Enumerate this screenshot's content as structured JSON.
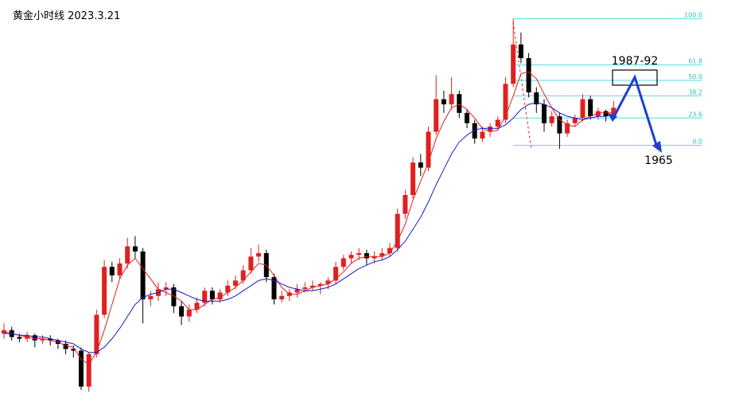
{
  "chart_data": {
    "type": "candlestick",
    "title": "黄金小时线  2023.3.21",
    "ylim": [
      1786,
      2021
    ],
    "up_color": "#e02020",
    "down_color": "#000000",
    "ohlc": [
      [
        1826,
        1832,
        1823,
        1828
      ],
      [
        1828,
        1830,
        1822,
        1824
      ],
      [
        1824,
        1826,
        1821,
        1823
      ],
      [
        1823,
        1827,
        1821,
        1825
      ],
      [
        1825,
        1826,
        1818,
        1822
      ],
      [
        1822,
        1825,
        1820,
        1823
      ],
      [
        1823,
        1825,
        1819,
        1822
      ],
      [
        1822,
        1823,
        1817,
        1820
      ],
      [
        1820,
        1822,
        1814,
        1817
      ],
      [
        1817,
        1819,
        1812,
        1816
      ],
      [
        1816,
        1818,
        1793,
        1795
      ],
      [
        1795,
        1815,
        1792,
        1814
      ],
      [
        1814,
        1840,
        1812,
        1837
      ],
      [
        1837,
        1869,
        1835,
        1865
      ],
      [
        1865,
        1868,
        1856,
        1860
      ],
      [
        1860,
        1870,
        1858,
        1867
      ],
      [
        1867,
        1882,
        1864,
        1877
      ],
      [
        1877,
        1883,
        1870,
        1874
      ],
      [
        1874,
        1876,
        1832,
        1846
      ],
      [
        1846,
        1851,
        1842,
        1848
      ],
      [
        1848,
        1856,
        1845,
        1852
      ],
      [
        1852,
        1856,
        1848,
        1853
      ],
      [
        1853,
        1855,
        1838,
        1842
      ],
      [
        1842,
        1845,
        1831,
        1836
      ],
      [
        1836,
        1843,
        1833,
        1840
      ],
      [
        1840,
        1847,
        1838,
        1844
      ],
      [
        1844,
        1853,
        1842,
        1851
      ],
      [
        1851,
        1853,
        1843,
        1846
      ],
      [
        1846,
        1852,
        1844,
        1850
      ],
      [
        1850,
        1857,
        1848,
        1854
      ],
      [
        1854,
        1860,
        1852,
        1857
      ],
      [
        1857,
        1866,
        1855,
        1863
      ],
      [
        1863,
        1876,
        1861,
        1871
      ],
      [
        1871,
        1878,
        1868,
        1873
      ],
      [
        1873,
        1875,
        1856,
        1859
      ],
      [
        1859,
        1861,
        1843,
        1846
      ],
      [
        1846,
        1851,
        1844,
        1848
      ],
      [
        1848,
        1852,
        1845,
        1850
      ],
      [
        1850,
        1855,
        1847,
        1852
      ],
      [
        1852,
        1856,
        1850,
        1853
      ],
      [
        1853,
        1857,
        1851,
        1854
      ],
      [
        1854,
        1856,
        1849,
        1855
      ],
      [
        1855,
        1859,
        1852,
        1857
      ],
      [
        1857,
        1868,
        1855,
        1865
      ],
      [
        1865,
        1872,
        1863,
        1870
      ],
      [
        1870,
        1874,
        1867,
        1872
      ],
      [
        1872,
        1876,
        1869,
        1873
      ],
      [
        1873,
        1875,
        1866,
        1870
      ],
      [
        1870,
        1874,
        1867,
        1871
      ],
      [
        1871,
        1876,
        1869,
        1873
      ],
      [
        1873,
        1879,
        1871,
        1876
      ],
      [
        1876,
        1899,
        1874,
        1896
      ],
      [
        1896,
        1910,
        1893,
        1907
      ],
      [
        1907,
        1929,
        1905,
        1926
      ],
      [
        1926,
        1931,
        1918,
        1923
      ],
      [
        1923,
        1947,
        1921,
        1944
      ],
      [
        1944,
        1977,
        1942,
        1963
      ],
      [
        1963,
        1968,
        1955,
        1960
      ],
      [
        1960,
        1976,
        1957,
        1966
      ],
      [
        1966,
        1968,
        1952,
        1955
      ],
      [
        1955,
        1957,
        1946,
        1949
      ],
      [
        1949,
        1951,
        1937,
        1940
      ],
      [
        1940,
        1947,
        1938,
        1944
      ],
      [
        1944,
        1949,
        1941,
        1947
      ],
      [
        1947,
        1953,
        1945,
        1951
      ],
      [
        1951,
        1976,
        1949,
        1972
      ],
      [
        1972,
        2010,
        1970,
        1995
      ],
      [
        1995,
        2002,
        1984,
        1987
      ],
      [
        1987,
        1990,
        1964,
        1967
      ],
      [
        1967,
        1970,
        1955,
        1960
      ],
      [
        1960,
        1963,
        1944,
        1949
      ],
      [
        1949,
        1956,
        1947,
        1953
      ],
      [
        1953,
        1955,
        1934,
        1943
      ],
      [
        1943,
        1951,
        1941,
        1949
      ],
      [
        1949,
        1954,
        1947,
        1952
      ],
      [
        1952,
        1966,
        1950,
        1963
      ],
      [
        1963,
        1965,
        1951,
        1953
      ],
      [
        1953,
        1958,
        1951,
        1956
      ],
      [
        1956,
        1957,
        1950,
        1953
      ],
      [
        1953,
        1962,
        1951,
        1958
      ]
    ],
    "series": [
      {
        "color": "#e02020",
        "values": [
          1827,
          1826,
          1825,
          1824,
          1823,
          1823,
          1822,
          1821,
          1819,
          1818,
          1811,
          1808,
          1815,
          1828,
          1843,
          1858,
          1866,
          1870,
          1864,
          1858,
          1852,
          1850,
          1848,
          1845,
          1840,
          1840,
          1843,
          1846,
          1847,
          1850,
          1853,
          1857,
          1862,
          1867,
          1866,
          1860,
          1853,
          1849,
          1849,
          1851,
          1853,
          1854,
          1855,
          1858,
          1862,
          1867,
          1870,
          1871,
          1871,
          1871,
          1873,
          1880,
          1890,
          1904,
          1915,
          1926,
          1940,
          1950,
          1958,
          1960,
          1957,
          1952,
          1946,
          1944,
          1945,
          1953,
          1965,
          1978,
          1979,
          1975,
          1966,
          1958,
          1951,
          1948,
          1947,
          1951,
          1953,
          1955,
          1955,
          1955
        ]
      },
      {
        "color": "#1a1acc",
        "values": [
          1826,
          1826,
          1825,
          1825,
          1824,
          1824,
          1823,
          1822,
          1821,
          1820,
          1817,
          1815,
          1815,
          1818,
          1823,
          1829,
          1836,
          1843,
          1847,
          1849,
          1850,
          1852,
          1852,
          1850,
          1848,
          1846,
          1845,
          1845,
          1845,
          1846,
          1848,
          1851,
          1854,
          1857,
          1858,
          1857,
          1855,
          1853,
          1852,
          1851,
          1851,
          1852,
          1853,
          1855,
          1858,
          1861,
          1864,
          1866,
          1868,
          1869,
          1871,
          1875,
          1880,
          1887,
          1894,
          1903,
          1913,
          1922,
          1931,
          1938,
          1942,
          1945,
          1946,
          1946,
          1946,
          1948,
          1952,
          1957,
          1960,
          1961,
          1960,
          1958,
          1955,
          1953,
          1952,
          1951,
          1952,
          1953,
          1953,
          1954
        ]
      }
    ],
    "fib_levels": [
      {
        "value": 2010,
        "label": "100.0"
      },
      {
        "value": 1983,
        "label": "61.8"
      },
      {
        "value": 1974,
        "label": "50.0"
      },
      {
        "value": 1965,
        "label": "38.2"
      },
      {
        "value": 1952,
        "label": "23.6"
      },
      {
        "value": 1936,
        "label": "0.0"
      }
    ],
    "fib_color": "#55dddd",
    "annotations": [
      "1987-92",
      "1965"
    ]
  }
}
